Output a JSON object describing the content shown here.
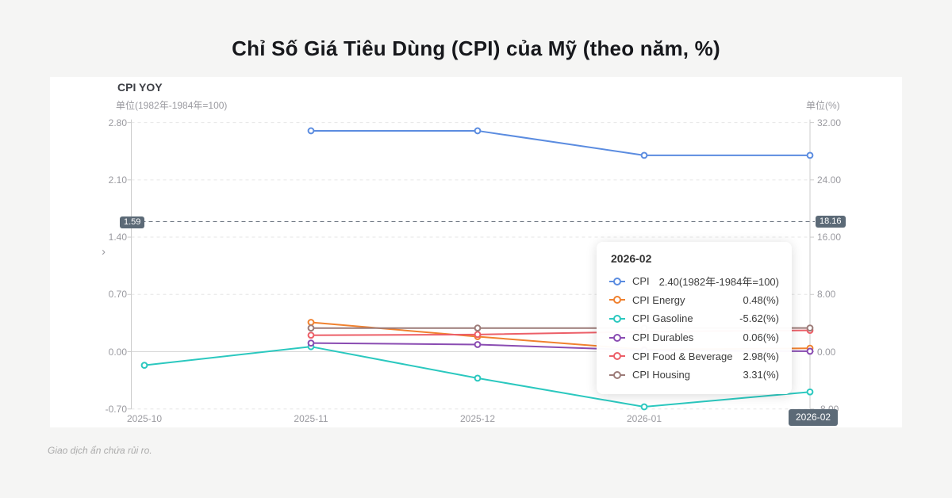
{
  "page": {
    "title": "Chỉ Số Giá Tiêu Dùng (CPI) của Mỹ (theo năm, %)",
    "footer": "Giao dịch ẩn chứa rủi ro."
  },
  "chart": {
    "header": "CPI YOY",
    "left_axis_unit": "单位(1982年-1984年=100)",
    "right_axis_unit": "单位(%)",
    "left_badge": "1.59",
    "right_badge": "18.16",
    "x_badge": "2026-02"
  },
  "chart_data": {
    "type": "line",
    "title": "CPI YOY",
    "categories": [
      "2025-10",
      "2025-11",
      "2025-12",
      "2026-01",
      "2026-02"
    ],
    "left_axis": {
      "unit": "单位(1982年-1984年=100)",
      "ticks": [
        2.8,
        2.1,
        1.4,
        0.7,
        0.0,
        -0.7
      ],
      "tick_labels": [
        "2.80",
        "2.10",
        "1.40",
        "0.70",
        "0.00",
        "-0.70"
      ],
      "range": [
        -0.7,
        2.8
      ]
    },
    "right_axis": {
      "unit": "单位(%)",
      "ticks": [
        32.0,
        24.0,
        16.0,
        8.0,
        0.0,
        -8.0
      ],
      "tick_labels": [
        "32.00",
        "24.00",
        "16.00",
        "8.00",
        "0.00",
        "-8.00"
      ],
      "range": [
        -8.0,
        32.0
      ]
    },
    "reference_line": {
      "left_value": 1.59,
      "right_value": 18.16
    },
    "grid": "dashed-horizontal",
    "series": [
      {
        "name": "CPI",
        "axis": "left",
        "color": "#5b8ce0",
        "values": [
          null,
          2.7,
          2.7,
          2.4,
          2.4
        ]
      },
      {
        "name": "CPI Energy",
        "axis": "right",
        "color": "#f0812f",
        "values": [
          null,
          4.1,
          2.1,
          0.3,
          0.48
        ]
      },
      {
        "name": "CPI Gasoline",
        "axis": "right",
        "color": "#2bc8bf",
        "values": [
          -1.9,
          0.7,
          -3.7,
          -7.7,
          -5.62
        ]
      },
      {
        "name": "CPI Durables",
        "axis": "right",
        "color": "#8a4cb2",
        "values": [
          null,
          1.2,
          1.0,
          0.2,
          0.06
        ]
      },
      {
        "name": "CPI Food & Beverage",
        "axis": "right",
        "color": "#ec5f68",
        "values": [
          null,
          2.3,
          2.4,
          2.8,
          2.98
        ]
      },
      {
        "name": "CPI Housing",
        "axis": "right",
        "color": "#9c7b78",
        "values": [
          null,
          3.3,
          3.3,
          3.3,
          3.31
        ]
      }
    ]
  },
  "tooltip": {
    "title": "2026-02",
    "rows": [
      {
        "label": "CPI",
        "value": "2.40(1982年-1984年=100)",
        "color": "#5b8ce0"
      },
      {
        "label": "CPI Energy",
        "value": "0.48(%)",
        "color": "#f0812f"
      },
      {
        "label": "CPI Gasoline",
        "value": "-5.62(%)",
        "color": "#2bc8bf"
      },
      {
        "label": "CPI Durables",
        "value": "0.06(%)",
        "color": "#8a4cb2"
      },
      {
        "label": "CPI Food & Beverage",
        "value": "2.98(%)",
        "color": "#ec5f68"
      },
      {
        "label": "CPI Housing",
        "value": "3.31(%)",
        "color": "#9c7b78"
      }
    ]
  }
}
